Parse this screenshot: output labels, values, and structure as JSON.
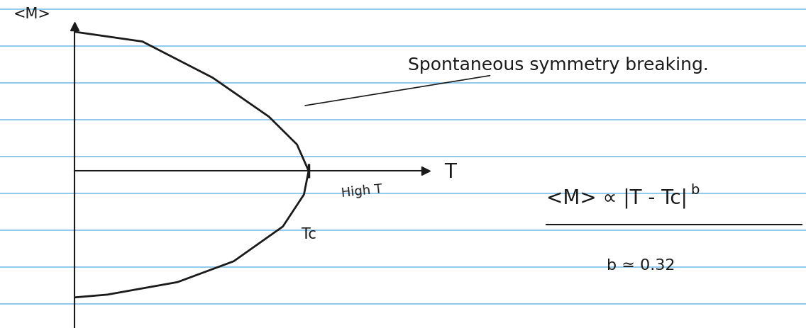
{
  "chart_data": {
    "type": "line",
    "x": [
      0,
      0.29,
      0.59,
      0.83,
      0.95,
      1.0,
      0.98,
      0.89,
      0.68,
      0.44,
      0.14,
      0
    ],
    "values": [
      1.0,
      0.93,
      0.67,
      0.39,
      0.19,
      0.0,
      -0.17,
      -0.4,
      -0.65,
      -0.8,
      -0.89,
      -0.91
    ],
    "color": "#1a1a1a",
    "xlim": [
      0,
      1.5
    ],
    "ylim": [
      -1.13,
      1.04
    ],
    "xticks": [
      {
        "value": 1,
        "label": "Tc"
      }
    ],
    "yticks": [],
    "tick_labels": "x",
    "x_label": "T",
    "y_label": "<M>",
    "annotations": {
      "arrow_note": "Spontaneous symmetry breaking.",
      "high_t": "High T",
      "formula": "<M> ∝ |T - Tc|",
      "formula_exponent": "b",
      "estimate": "b ≃ 0.32"
    }
  }
}
